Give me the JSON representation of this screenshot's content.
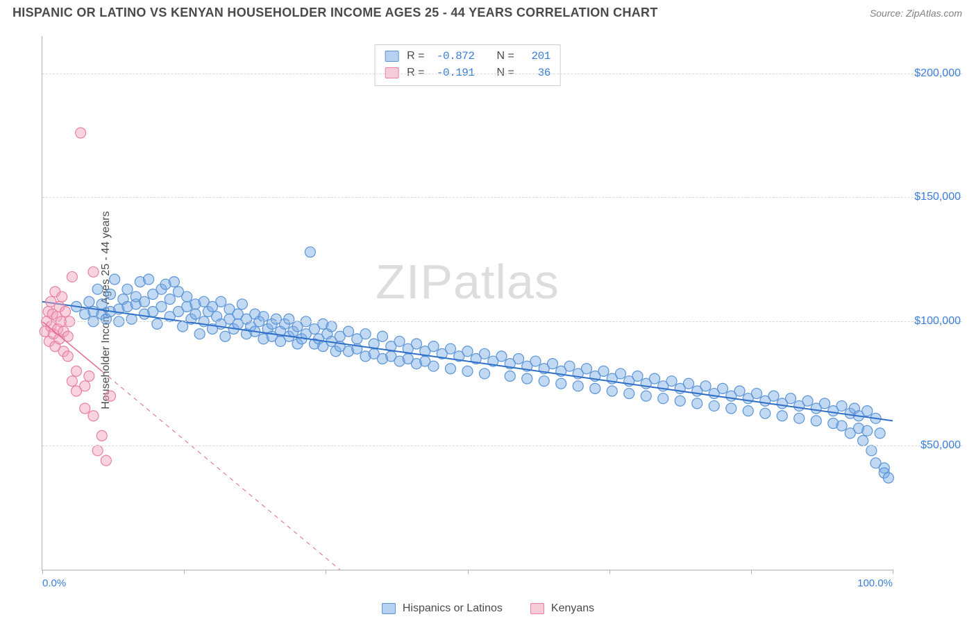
{
  "header": {
    "title": "HISPANIC OR LATINO VS KENYAN HOUSEHOLDER INCOME AGES 25 - 44 YEARS CORRELATION CHART",
    "source": "Source: ZipAtlas.com"
  },
  "ylabel": "Householder Income Ages 25 - 44 years",
  "watermark_a": "ZIP",
  "watermark_b": "atlas",
  "chart": {
    "type": "scatter",
    "background_color": "#ffffff",
    "grid_color": "#d8d8d8",
    "axis_color": "#b0b0b0",
    "xlim": [
      0,
      100
    ],
    "ylim": [
      0,
      215000
    ],
    "x_ticks": [
      0,
      16.67,
      33.33,
      50,
      66.67,
      83.33,
      100
    ],
    "x_tick_labels_shown": {
      "0": "0.0%",
      "100": "100.0%"
    },
    "y_gridlines": [
      50000,
      100000,
      150000,
      200000
    ],
    "y_tick_labels": {
      "50000": "$50,000",
      "100000": "$100,000",
      "150000": "$150,000",
      "200000": "$200,000"
    },
    "tick_label_color": "#3b7dd8",
    "marker_radius": 7.5,
    "marker_stroke_width": 1.2,
    "series": [
      {
        "name": "Hispanics or Latinos",
        "fill": "rgba(120,170,230,0.45)",
        "stroke": "#5a93d6",
        "regression": {
          "x1": 0,
          "y1": 108000,
          "x2": 100,
          "y2": 60000,
          "solid_until_x": 100,
          "stroke": "#2f6fc7",
          "width": 2
        },
        "R": "-0.872",
        "N": "201",
        "points": [
          [
            4,
            106000
          ],
          [
            5,
            103000
          ],
          [
            5.5,
            108000
          ],
          [
            6,
            104000
          ],
          [
            6,
            100000
          ],
          [
            6.5,
            113000
          ],
          [
            7,
            103000
          ],
          [
            7,
            107000
          ],
          [
            7.5,
            101000
          ],
          [
            8,
            111000
          ],
          [
            8,
            104000
          ],
          [
            8.5,
            117000
          ],
          [
            9,
            105000
          ],
          [
            9,
            100000
          ],
          [
            9.5,
            109000
          ],
          [
            10,
            106000
          ],
          [
            10,
            113000
          ],
          [
            10.5,
            101000
          ],
          [
            11,
            107000
          ],
          [
            11,
            110000
          ],
          [
            11.5,
            116000
          ],
          [
            12,
            103000
          ],
          [
            12,
            108000
          ],
          [
            12.5,
            117000
          ],
          [
            13,
            104000
          ],
          [
            13,
            111000
          ],
          [
            13.5,
            99000
          ],
          [
            14,
            106000
          ],
          [
            14,
            113000
          ],
          [
            14.5,
            115000
          ],
          [
            15,
            102000
          ],
          [
            15,
            109000
          ],
          [
            15.5,
            116000
          ],
          [
            16,
            104000
          ],
          [
            16,
            112000
          ],
          [
            16.5,
            98000
          ],
          [
            17,
            106000
          ],
          [
            17,
            110000
          ],
          [
            17.5,
            101000
          ],
          [
            18,
            107000
          ],
          [
            18,
            103000
          ],
          [
            18.5,
            95000
          ],
          [
            19,
            108000
          ],
          [
            19,
            100000
          ],
          [
            19.5,
            104000
          ],
          [
            20,
            97000
          ],
          [
            20,
            106000
          ],
          [
            20.5,
            102000
          ],
          [
            21,
            99000
          ],
          [
            21,
            108000
          ],
          [
            21.5,
            94000
          ],
          [
            22,
            105000
          ],
          [
            22,
            101000
          ],
          [
            22.5,
            97000
          ],
          [
            23,
            103000
          ],
          [
            23,
            99000
          ],
          [
            23.5,
            107000
          ],
          [
            24,
            95000
          ],
          [
            24,
            101000
          ],
          [
            24.5,
            98000
          ],
          [
            25,
            103000
          ],
          [
            25,
            96000
          ],
          [
            25.5,
            100000
          ],
          [
            26,
            93000
          ],
          [
            26,
            102000
          ],
          [
            26.5,
            97000
          ],
          [
            27,
            99000
          ],
          [
            27,
            94000
          ],
          [
            27.5,
            101000
          ],
          [
            28,
            96000
          ],
          [
            28,
            92000
          ],
          [
            28.5,
            99000
          ],
          [
            29,
            94000
          ],
          [
            29,
            101000
          ],
          [
            29.5,
            96000
          ],
          [
            30,
            91000
          ],
          [
            30,
            98000
          ],
          [
            30.5,
            93000
          ],
          [
            31,
            100000
          ],
          [
            31,
            95000
          ],
          [
            31.5,
            128000
          ],
          [
            32,
            91000
          ],
          [
            32,
            97000
          ],
          [
            32.5,
            93000
          ],
          [
            33,
            99000
          ],
          [
            33,
            90000
          ],
          [
            33.5,
            95000
          ],
          [
            34,
            92000
          ],
          [
            34,
            98000
          ],
          [
            34.5,
            88000
          ],
          [
            35,
            94000
          ],
          [
            35,
            90000
          ],
          [
            36,
            96000
          ],
          [
            36,
            88000
          ],
          [
            37,
            93000
          ],
          [
            37,
            89000
          ],
          [
            38,
            95000
          ],
          [
            38,
            86000
          ],
          [
            39,
            91000
          ],
          [
            39,
            87000
          ],
          [
            40,
            94000
          ],
          [
            40,
            85000
          ],
          [
            41,
            90000
          ],
          [
            41,
            86000
          ],
          [
            42,
            92000
          ],
          [
            42,
            84000
          ],
          [
            43,
            89000
          ],
          [
            43,
            85000
          ],
          [
            44,
            91000
          ],
          [
            44,
            83000
          ],
          [
            45,
            88000
          ],
          [
            45,
            84000
          ],
          [
            46,
            90000
          ],
          [
            46,
            82000
          ],
          [
            47,
            87000
          ],
          [
            48,
            89000
          ],
          [
            48,
            81000
          ],
          [
            49,
            86000
          ],
          [
            50,
            88000
          ],
          [
            50,
            80000
          ],
          [
            51,
            85000
          ],
          [
            52,
            87000
          ],
          [
            52,
            79000
          ],
          [
            53,
            84000
          ],
          [
            54,
            86000
          ],
          [
            55,
            78000
          ],
          [
            55,
            83000
          ],
          [
            56,
            85000
          ],
          [
            57,
            77000
          ],
          [
            57,
            82000
          ],
          [
            58,
            84000
          ],
          [
            59,
            76000
          ],
          [
            59,
            81000
          ],
          [
            60,
            83000
          ],
          [
            61,
            75000
          ],
          [
            61,
            80000
          ],
          [
            62,
            82000
          ],
          [
            63,
            74000
          ],
          [
            63,
            79000
          ],
          [
            64,
            81000
          ],
          [
            65,
            73000
          ],
          [
            65,
            78000
          ],
          [
            66,
            80000
          ],
          [
            67,
            72000
          ],
          [
            67,
            77000
          ],
          [
            68,
            79000
          ],
          [
            69,
            71000
          ],
          [
            69,
            76000
          ],
          [
            70,
            78000
          ],
          [
            71,
            70000
          ],
          [
            71,
            75000
          ],
          [
            72,
            77000
          ],
          [
            73,
            69000
          ],
          [
            73,
            74000
          ],
          [
            74,
            76000
          ],
          [
            75,
            68000
          ],
          [
            75,
            73000
          ],
          [
            76,
            75000
          ],
          [
            77,
            67000
          ],
          [
            77,
            72000
          ],
          [
            78,
            74000
          ],
          [
            79,
            66000
          ],
          [
            79,
            71000
          ],
          [
            80,
            73000
          ],
          [
            81,
            65000
          ],
          [
            81,
            70000
          ],
          [
            82,
            72000
          ],
          [
            83,
            64000
          ],
          [
            83,
            69000
          ],
          [
            84,
            71000
          ],
          [
            85,
            63000
          ],
          [
            85,
            68000
          ],
          [
            86,
            70000
          ],
          [
            87,
            62000
          ],
          [
            87,
            67000
          ],
          [
            88,
            69000
          ],
          [
            89,
            61000
          ],
          [
            89,
            66000
          ],
          [
            90,
            68000
          ],
          [
            91,
            60000
          ],
          [
            91,
            65000
          ],
          [
            92,
            67000
          ],
          [
            93,
            59000
          ],
          [
            93,
            64000
          ],
          [
            94,
            66000
          ],
          [
            94,
            58000
          ],
          [
            95,
            63000
          ],
          [
            95,
            55000
          ],
          [
            95.5,
            65000
          ],
          [
            96,
            57000
          ],
          [
            96,
            62000
          ],
          [
            96.5,
            52000
          ],
          [
            97,
            64000
          ],
          [
            97,
            56000
          ],
          [
            97.5,
            48000
          ],
          [
            98,
            61000
          ],
          [
            98,
            43000
          ],
          [
            98.5,
            55000
          ],
          [
            99,
            41000
          ],
          [
            99,
            39000
          ],
          [
            99.5,
            37000
          ]
        ]
      },
      {
        "name": "Kenyans",
        "fill": "rgba(242,160,185,0.45)",
        "stroke": "#e87fa4",
        "regression": {
          "x1": 0,
          "y1": 100000,
          "x2": 35,
          "y2": 0,
          "solid_until_x": 7,
          "stroke": "#e36a94",
          "width": 1.5
        },
        "R": "-0.191",
        "N": "36",
        "points": [
          [
            0.3,
            96000
          ],
          [
            0.5,
            100000
          ],
          [
            0.7,
            104000
          ],
          [
            0.8,
            92000
          ],
          [
            1,
            98000
          ],
          [
            1,
            108000
          ],
          [
            1.2,
            103000
          ],
          [
            1.3,
            95000
          ],
          [
            1.5,
            112000
          ],
          [
            1.5,
            90000
          ],
          [
            1.7,
            102000
          ],
          [
            1.8,
            97000
          ],
          [
            2,
            106000
          ],
          [
            2,
            93000
          ],
          [
            2.2,
            100000
          ],
          [
            2.3,
            110000
          ],
          [
            2.5,
            96000
          ],
          [
            2.5,
            88000
          ],
          [
            2.7,
            104000
          ],
          [
            3,
            94000
          ],
          [
            3,
            86000
          ],
          [
            3.2,
            100000
          ],
          [
            3.5,
            76000
          ],
          [
            3.5,
            118000
          ],
          [
            4,
            72000
          ],
          [
            4,
            80000
          ],
          [
            4.5,
            176000
          ],
          [
            5,
            74000
          ],
          [
            5,
            65000
          ],
          [
            5.5,
            78000
          ],
          [
            6,
            62000
          ],
          [
            6,
            120000
          ],
          [
            6.5,
            48000
          ],
          [
            7,
            54000
          ],
          [
            7.5,
            44000
          ],
          [
            8,
            70000
          ]
        ]
      }
    ]
  },
  "stats_box": {
    "rows": [
      {
        "swatch_fill": "rgba(120,170,230,0.55)",
        "swatch_stroke": "#5a93d6",
        "r_label": "R =",
        "r_val": "-0.872",
        "n_label": "N =",
        "n_val": "201"
      },
      {
        "swatch_fill": "rgba(242,160,185,0.55)",
        "swatch_stroke": "#e87fa4",
        "r_label": "R =",
        "r_val": "-0.191",
        "n_label": "N =",
        "n_val": " 36"
      }
    ]
  },
  "legend": {
    "items": [
      {
        "swatch_fill": "rgba(120,170,230,0.55)",
        "swatch_stroke": "#5a93d6",
        "label": "Hispanics or Latinos"
      },
      {
        "swatch_fill": "rgba(242,160,185,0.55)",
        "swatch_stroke": "#e87fa4",
        "label": "Kenyans"
      }
    ]
  }
}
